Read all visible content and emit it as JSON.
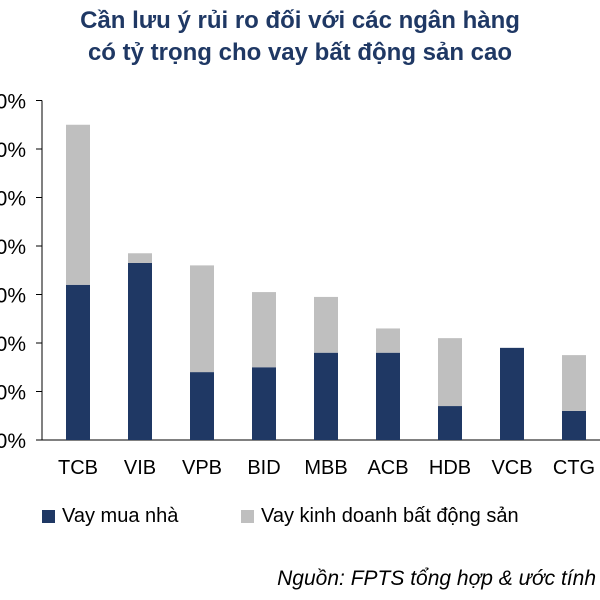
{
  "title_line1": "Cần lưu ý rủi ro đối với các ngân hàng",
  "title_line2": "có tỷ trọng cho vay bất động sản cao",
  "source": "Nguồn: FPTS tổng hợp & ước tính",
  "colors": {
    "primary": "#1f3864",
    "secondary": "#bfbfbf"
  },
  "chart_data": {
    "type": "bar",
    "stacked": true,
    "categories": [
      "TCB",
      "VIB",
      "VPB",
      "BID",
      "MBB",
      "ACB",
      "HDB",
      "VCB",
      "CTG"
    ],
    "series": [
      {
        "name": "Vay mua nhà",
        "values": [
          32,
          36.5,
          14,
          15,
          18,
          18,
          7,
          19,
          6
        ]
      },
      {
        "name": "Vay kinh doanh bất động sản",
        "values": [
          33,
          2,
          22,
          15.5,
          11.5,
          5,
          14,
          0,
          11.5
        ]
      }
    ],
    "ylim": [
      0,
      70
    ],
    "ytick_step": 10,
    "ytick_suffix": "%",
    "xlabel": "",
    "ylabel": "",
    "legend_position": "bottom",
    "grid": false
  }
}
